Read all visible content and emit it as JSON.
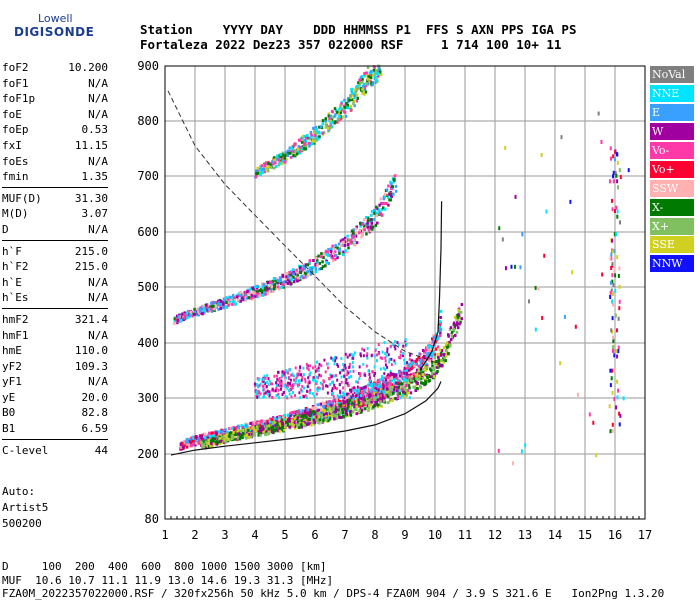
{
  "logo": {
    "line1": "Lowell",
    "line2": "DIGISONDE"
  },
  "header": {
    "labels": "Station    YYYY DAY    DDD HHMMSS P1  FFS S AXN PPS IGA PS",
    "values": "Fortaleza 2022 Dez23 357 022000 RSF     1 714 100 10+ 11"
  },
  "params": [
    [
      {
        "k": "foF2",
        "v": "10.200"
      },
      {
        "k": "foF1",
        "v": "N/A"
      },
      {
        "k": "foF1p",
        "v": "N/A"
      },
      {
        "k": "foE",
        "v": "N/A"
      },
      {
        "k": "foEp",
        "v": "0.53"
      },
      {
        "k": "fxI",
        "v": "11.15"
      },
      {
        "k": "foEs",
        "v": "N/A"
      },
      {
        "k": "fmin",
        "v": "1.35"
      }
    ],
    [
      {
        "k": "MUF(D)",
        "v": "31.30"
      },
      {
        "k": "M(D)",
        "v": "3.07"
      },
      {
        "k": "D",
        "v": "N/A"
      }
    ],
    [
      {
        "k": "h`F",
        "v": "215.0"
      },
      {
        "k": "h`F2",
        "v": "215.0"
      },
      {
        "k": "h`E",
        "v": "N/A"
      },
      {
        "k": "h`Es",
        "v": "N/A"
      }
    ],
    [
      {
        "k": "hmF2",
        "v": "321.4"
      },
      {
        "k": "hmF1",
        "v": "N/A"
      },
      {
        "k": "hmE",
        "v": "110.0"
      },
      {
        "k": "yF2",
        "v": "109.3"
      },
      {
        "k": "yF1",
        "v": "N/A"
      },
      {
        "k": "yE",
        "v": "20.0"
      },
      {
        "k": "B0",
        "v": "82.8"
      },
      {
        "k": "B1",
        "v": "6.59"
      }
    ],
    [
      {
        "k": "C-level",
        "v": "44"
      }
    ]
  ],
  "auto": {
    "line1": "Auto:",
    "line2": "Artist5",
    "line3": "500200"
  },
  "legend": [
    {
      "label": "NoVal",
      "color": "#7f7f7f"
    },
    {
      "label": "NNE",
      "color": "#00e5ff"
    },
    {
      "label": "E",
      "color": "#3aa0ff"
    },
    {
      "label": "W",
      "color": "#a000a0"
    },
    {
      "label": "Vo-",
      "color": "#ff3aa8"
    },
    {
      "label": "Vo+",
      "color": "#ff0033"
    },
    {
      "label": "SSW",
      "color": "#ffb0b0"
    },
    {
      "label": "X-",
      "color": "#007a00"
    },
    {
      "label": "X+",
      "color": "#80c060"
    },
    {
      "label": "SSE",
      "color": "#d0d020"
    },
    {
      "label": "NNW",
      "color": "#1010ff"
    }
  ],
  "bottom": {
    "line1": "D     100  200  400  600  800 1000 1500 3000 [km]",
    "line2": "MUF  10.6 10.7 11.1 11.9 13.0 14.6 19.3 31.3 [MHz]",
    "line3": "FZA0M_2022357022000.RSF / 320fx256h 50 kHz 5.0 km / DPS-4 FZA0M 904 / 3.9 S 321.6 E   Ion2Png 1.3.20"
  },
  "chart_data": {
    "type": "scatter",
    "xlim": [
      1,
      17
    ],
    "ylim": [
      80,
      900
    ],
    "x_ticks": [
      "1",
      "2",
      "3",
      "4",
      "5",
      "6",
      "7",
      "8",
      "9",
      "10",
      "11",
      "12",
      "13",
      "14",
      "15",
      "16",
      "17"
    ],
    "y_ticks": [
      "80",
      "200",
      "300",
      "400",
      "500",
      "600",
      "700",
      "800",
      "900"
    ],
    "grid": true,
    "traces": {
      "o_mode": [
        [
          1.5,
          215
        ],
        [
          2,
          224
        ],
        [
          3,
          235
        ],
        [
          4,
          246
        ],
        [
          5,
          258
        ],
        [
          6,
          272
        ],
        [
          7,
          290
        ],
        [
          8,
          312
        ],
        [
          8.8,
          330
        ],
        [
          9.3,
          352
        ],
        [
          9.8,
          380
        ],
        [
          10.1,
          410
        ],
        [
          10.2,
          440
        ]
      ],
      "x_mode": [
        [
          2.2,
          215
        ],
        [
          3,
          228
        ],
        [
          4,
          240
        ],
        [
          5,
          252
        ],
        [
          6,
          265
        ],
        [
          7,
          280
        ],
        [
          8,
          296
        ],
        [
          9,
          318
        ],
        [
          9.8,
          345
        ],
        [
          10.3,
          380
        ],
        [
          10.6,
          420
        ],
        [
          10.9,
          460
        ]
      ],
      "second_hop": [
        [
          1.3,
          440
        ],
        [
          2,
          455
        ],
        [
          3,
          472
        ],
        [
          4,
          490
        ],
        [
          5,
          512
        ],
        [
          6,
          540
        ],
        [
          7,
          575
        ],
        [
          8,
          625
        ],
        [
          8.7,
          690
        ]
      ],
      "third_hop": [
        [
          4,
          705
        ],
        [
          5,
          735
        ],
        [
          6,
          775
        ],
        [
          7,
          825
        ],
        [
          7.8,
          880
        ],
        [
          8.2,
          900
        ]
      ]
    },
    "profile_lower": [
      [
        1.2,
        198
      ],
      [
        2,
        207
      ],
      [
        3,
        214
      ],
      [
        4,
        220
      ],
      [
        5,
        226
      ],
      [
        6,
        233
      ],
      [
        7,
        241
      ],
      [
        8,
        252
      ],
      [
        9,
        272
      ],
      [
        9.7,
        295
      ],
      [
        10.1,
        318
      ],
      [
        10.2,
        330
      ]
    ],
    "profile_upper": [
      [
        9.5,
        350
      ],
      [
        9.9,
        385
      ],
      [
        10.1,
        420
      ],
      [
        10.15,
        480
      ],
      [
        10.2,
        570
      ],
      [
        10.22,
        655
      ]
    ],
    "muf_curve": [
      [
        1.1,
        855
      ],
      [
        2,
        755
      ],
      [
        3,
        685
      ],
      [
        4,
        630
      ],
      [
        5,
        575
      ],
      [
        6,
        520
      ],
      [
        7,
        465
      ],
      [
        8,
        420
      ],
      [
        9,
        385
      ],
      [
        10,
        365
      ],
      [
        10.3,
        360
      ]
    ]
  }
}
